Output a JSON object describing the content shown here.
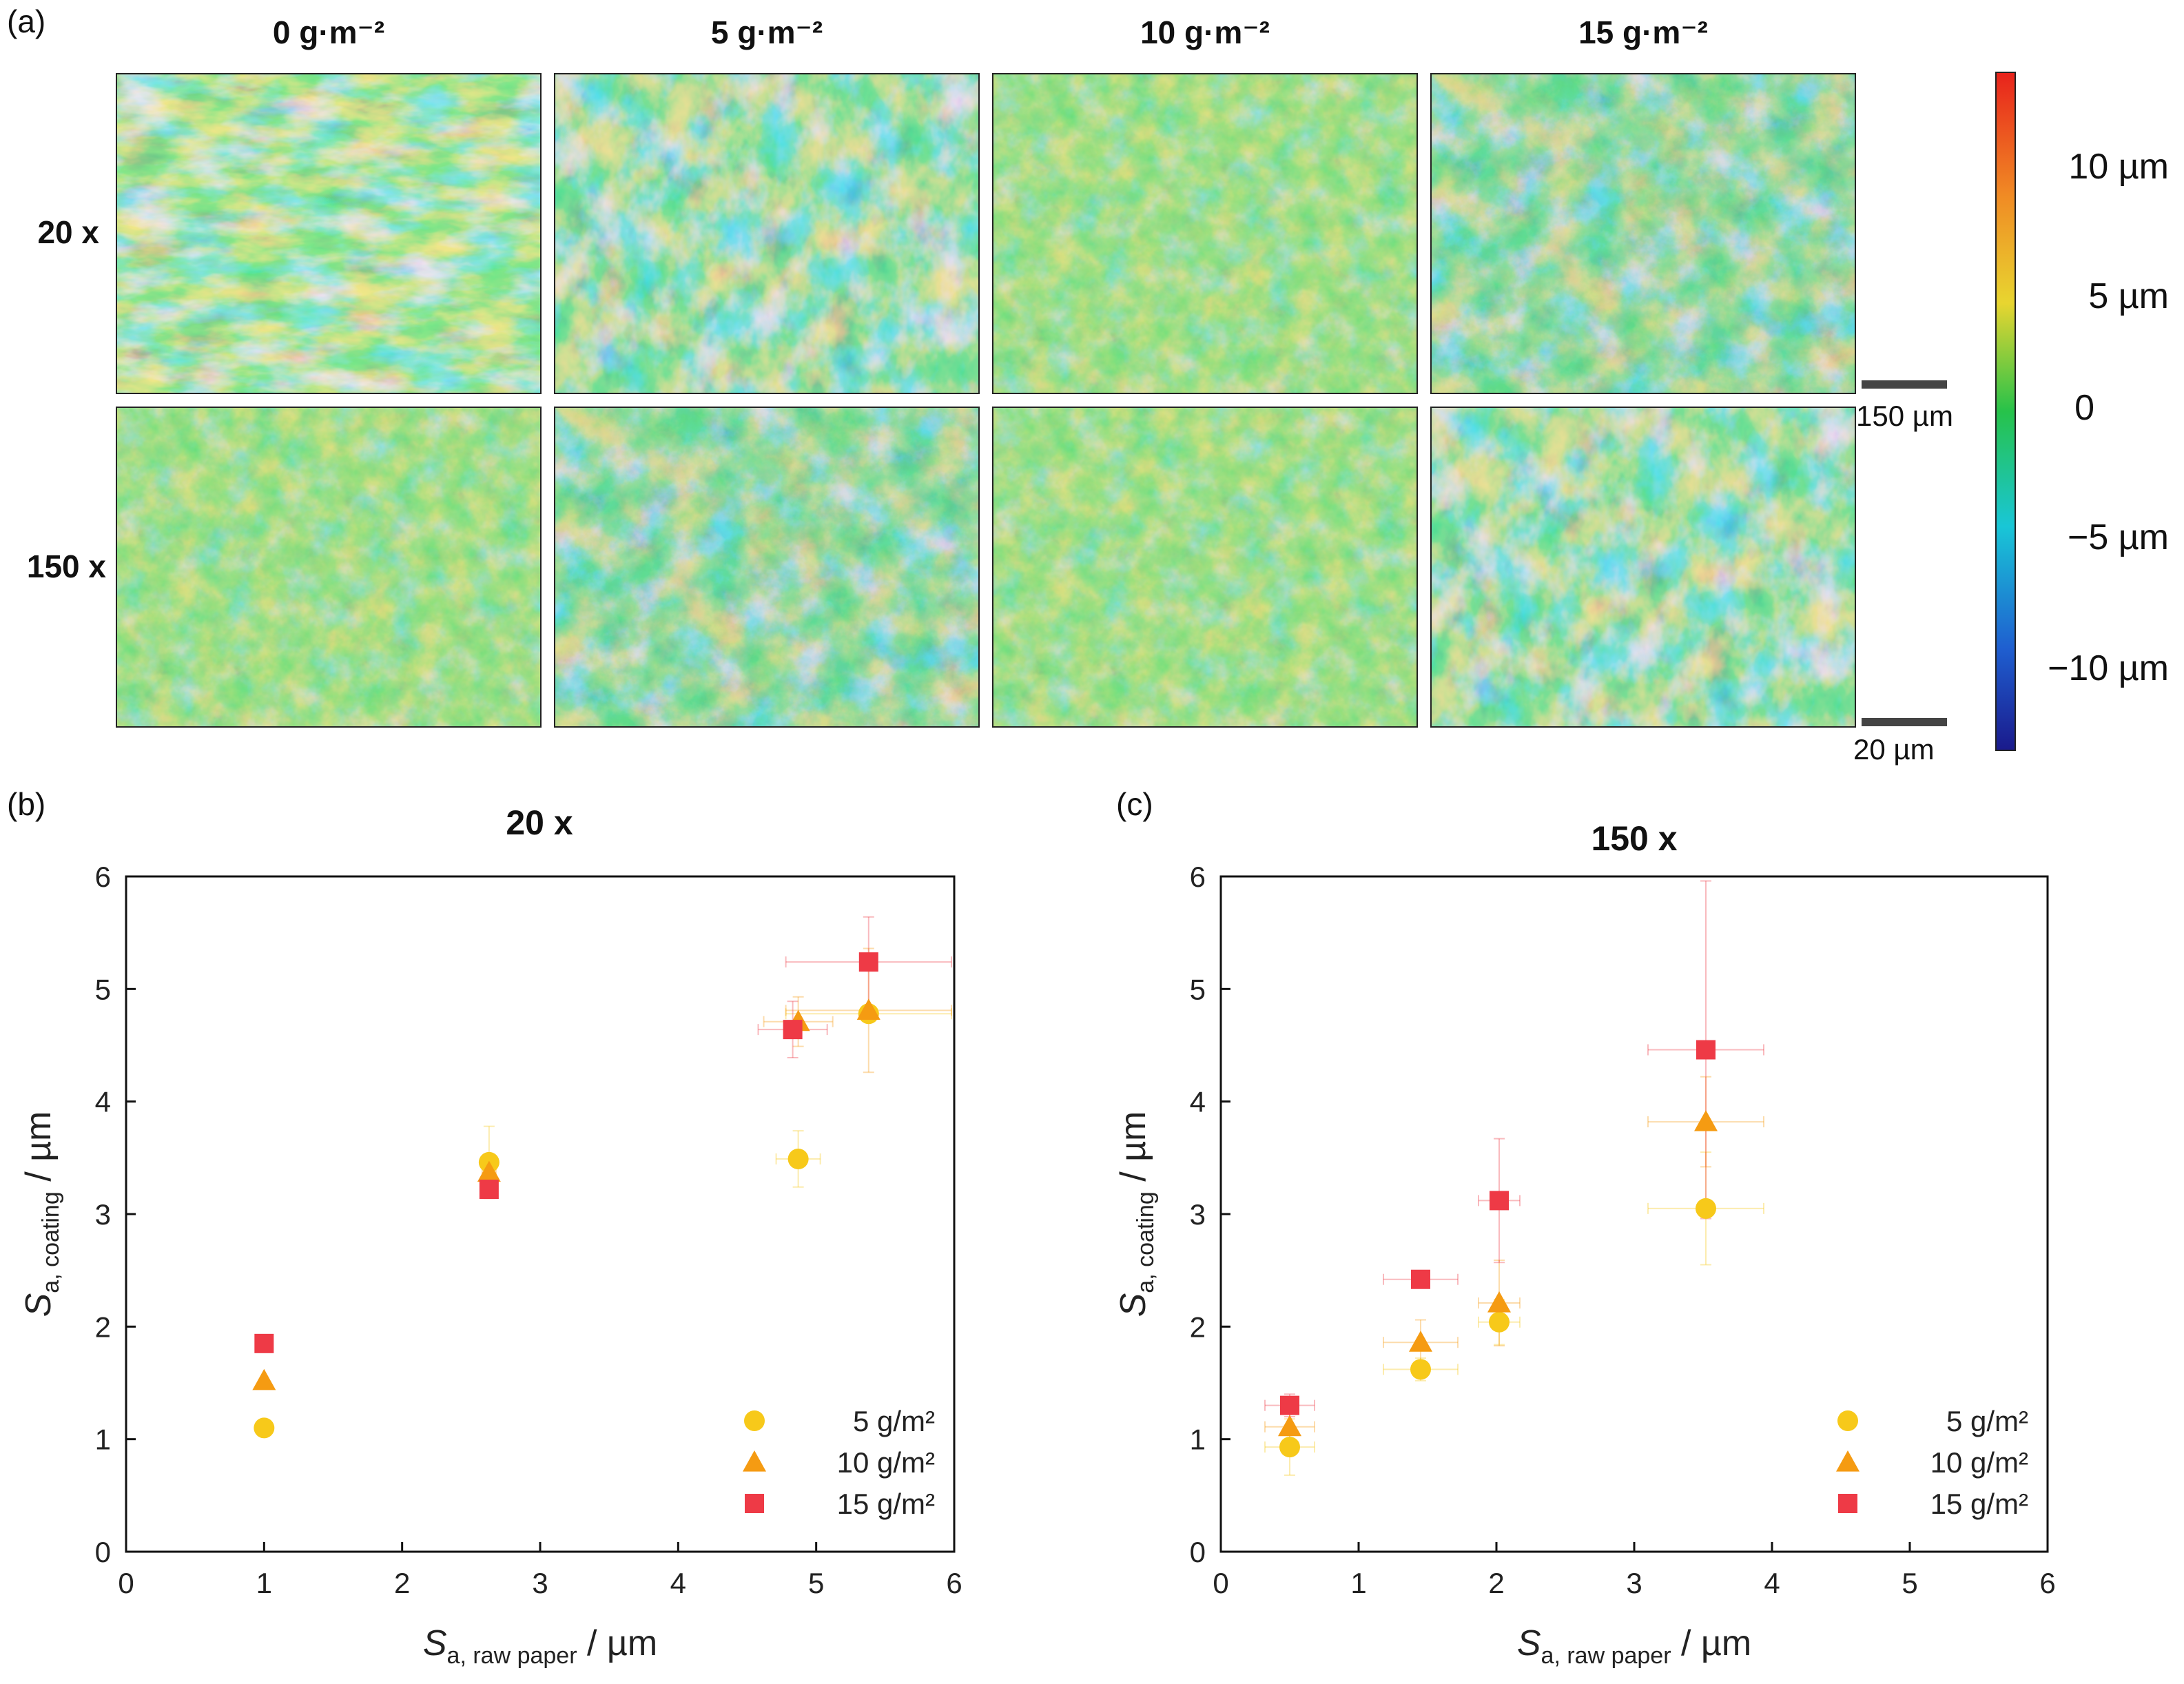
{
  "panel_a": {
    "label": "(a)",
    "columns": [
      "0 g·m⁻²",
      "5 g·m⁻²",
      "10 g·m⁻²",
      "15 g·m⁻²"
    ],
    "rows": [
      "20 x",
      "150 x"
    ],
    "scalebars": [
      "150 µm",
      "20 µm"
    ],
    "colorbar": {
      "labels": [
        "10 µm",
        "5 µm",
        "0",
        "−5 µm",
        "−10 µm"
      ],
      "values": [
        10,
        5,
        0,
        -5,
        -10
      ],
      "range": [
        -13.5,
        13.5
      ],
      "colors": [
        "#1a1a8c",
        "#1f5fd0",
        "#19c6d6",
        "#27c24a",
        "#e8d530",
        "#f08a24",
        "#e8231c"
      ]
    }
  },
  "chart_data": [
    {
      "type": "scatter",
      "panel": "(b)",
      "title": "20 x",
      "xlabel": {
        "main": "S",
        "sub": "a, raw paper",
        "unit": " / µm"
      },
      "ylabel": {
        "main": "S",
        "sub": "a, coating",
        "unit": " / µm"
      },
      "xlim": [
        0,
        6
      ],
      "ylim": [
        0,
        6
      ],
      "xticks": [
        "0",
        "1",
        "2",
        "3",
        "4",
        "5",
        "6"
      ],
      "yticks": [
        "0",
        "1",
        "2",
        "3",
        "4",
        "5",
        "6"
      ],
      "legend_position": "bottom-right",
      "series": [
        {
          "name": "5 g/m²",
          "marker": "circle",
          "color": "#f7c91a",
          "points": [
            {
              "x": 1.0,
              "y": 1.1,
              "xerr": 0.0,
              "yerr": 0.0
            },
            {
              "x": 2.63,
              "y": 3.46,
              "xerr": 0.05,
              "yerr": 0.32
            },
            {
              "x": 4.87,
              "y": 3.49,
              "xerr": 0.16,
              "yerr": 0.25
            },
            {
              "x": 5.38,
              "y": 4.78,
              "xerr": 0.6,
              "yerr": 0.05
            }
          ]
        },
        {
          "name": "10 g/m²",
          "marker": "triangle",
          "color": "#f59b12",
          "points": [
            {
              "x": 1.0,
              "y": 1.52,
              "xerr": 0.0,
              "yerr": 0.0
            },
            {
              "x": 2.63,
              "y": 3.37,
              "xerr": 0.05,
              "yerr": 0.15
            },
            {
              "x": 4.87,
              "y": 4.71,
              "xerr": 0.25,
              "yerr": 0.22
            },
            {
              "x": 5.38,
              "y": 4.81,
              "xerr": 0.6,
              "yerr": 0.55
            }
          ]
        },
        {
          "name": "15 g/m²",
          "marker": "square",
          "color": "#ee3a46",
          "points": [
            {
              "x": 1.0,
              "y": 1.85,
              "xerr": 0.0,
              "yerr": 0.0
            },
            {
              "x": 2.63,
              "y": 3.22,
              "xerr": 0.05,
              "yerr": 0.08
            },
            {
              "x": 4.83,
              "y": 4.64,
              "xerr": 0.25,
              "yerr": 0.25
            },
            {
              "x": 5.38,
              "y": 5.24,
              "xerr": 0.6,
              "yerr": 0.4
            }
          ]
        }
      ]
    },
    {
      "type": "scatter",
      "panel": "(c)",
      "title": "150 x",
      "xlabel": {
        "main": "S",
        "sub": "a, raw paper",
        "unit": " / µm"
      },
      "ylabel": {
        "main": "S",
        "sub": "a, coating",
        "unit": " / µm"
      },
      "xlim": [
        0,
        6
      ],
      "ylim": [
        0,
        6
      ],
      "xticks": [
        "0",
        "1",
        "2",
        "3",
        "4",
        "5",
        "6"
      ],
      "yticks": [
        "0",
        "1",
        "2",
        "3",
        "4",
        "5",
        "6"
      ],
      "legend_position": "bottom-right",
      "series": [
        {
          "name": "5 g/m²",
          "marker": "circle",
          "color": "#f7c91a",
          "points": [
            {
              "x": 0.5,
              "y": 0.93,
              "xerr": 0.18,
              "yerr": 0.25
            },
            {
              "x": 1.45,
              "y": 1.62,
              "xerr": 0.27,
              "yerr": 0.1
            },
            {
              "x": 2.02,
              "y": 2.04,
              "xerr": 0.15,
              "yerr": 0.2
            },
            {
              "x": 3.52,
              "y": 3.05,
              "xerr": 0.42,
              "yerr": 0.5
            }
          ]
        },
        {
          "name": "10 g/m²",
          "marker": "triangle",
          "color": "#f59b12",
          "points": [
            {
              "x": 0.5,
              "y": 1.11,
              "xerr": 0.18,
              "yerr": 0.15
            },
            {
              "x": 1.45,
              "y": 1.86,
              "xerr": 0.27,
              "yerr": 0.2
            },
            {
              "x": 2.02,
              "y": 2.21,
              "xerr": 0.15,
              "yerr": 0.38
            },
            {
              "x": 3.52,
              "y": 3.82,
              "xerr": 0.42,
              "yerr": 0.4
            }
          ]
        },
        {
          "name": "15 g/m²",
          "marker": "square",
          "color": "#ee3a46",
          "points": [
            {
              "x": 0.5,
              "y": 1.3,
              "xerr": 0.18,
              "yerr": 0.1
            },
            {
              "x": 1.45,
              "y": 2.42,
              "xerr": 0.27,
              "yerr": 0.05
            },
            {
              "x": 2.02,
              "y": 3.12,
              "xerr": 0.15,
              "yerr": 0.55
            },
            {
              "x": 3.52,
              "y": 4.46,
              "xerr": 0.42,
              "yerr": 1.5
            }
          ]
        }
      ]
    }
  ]
}
